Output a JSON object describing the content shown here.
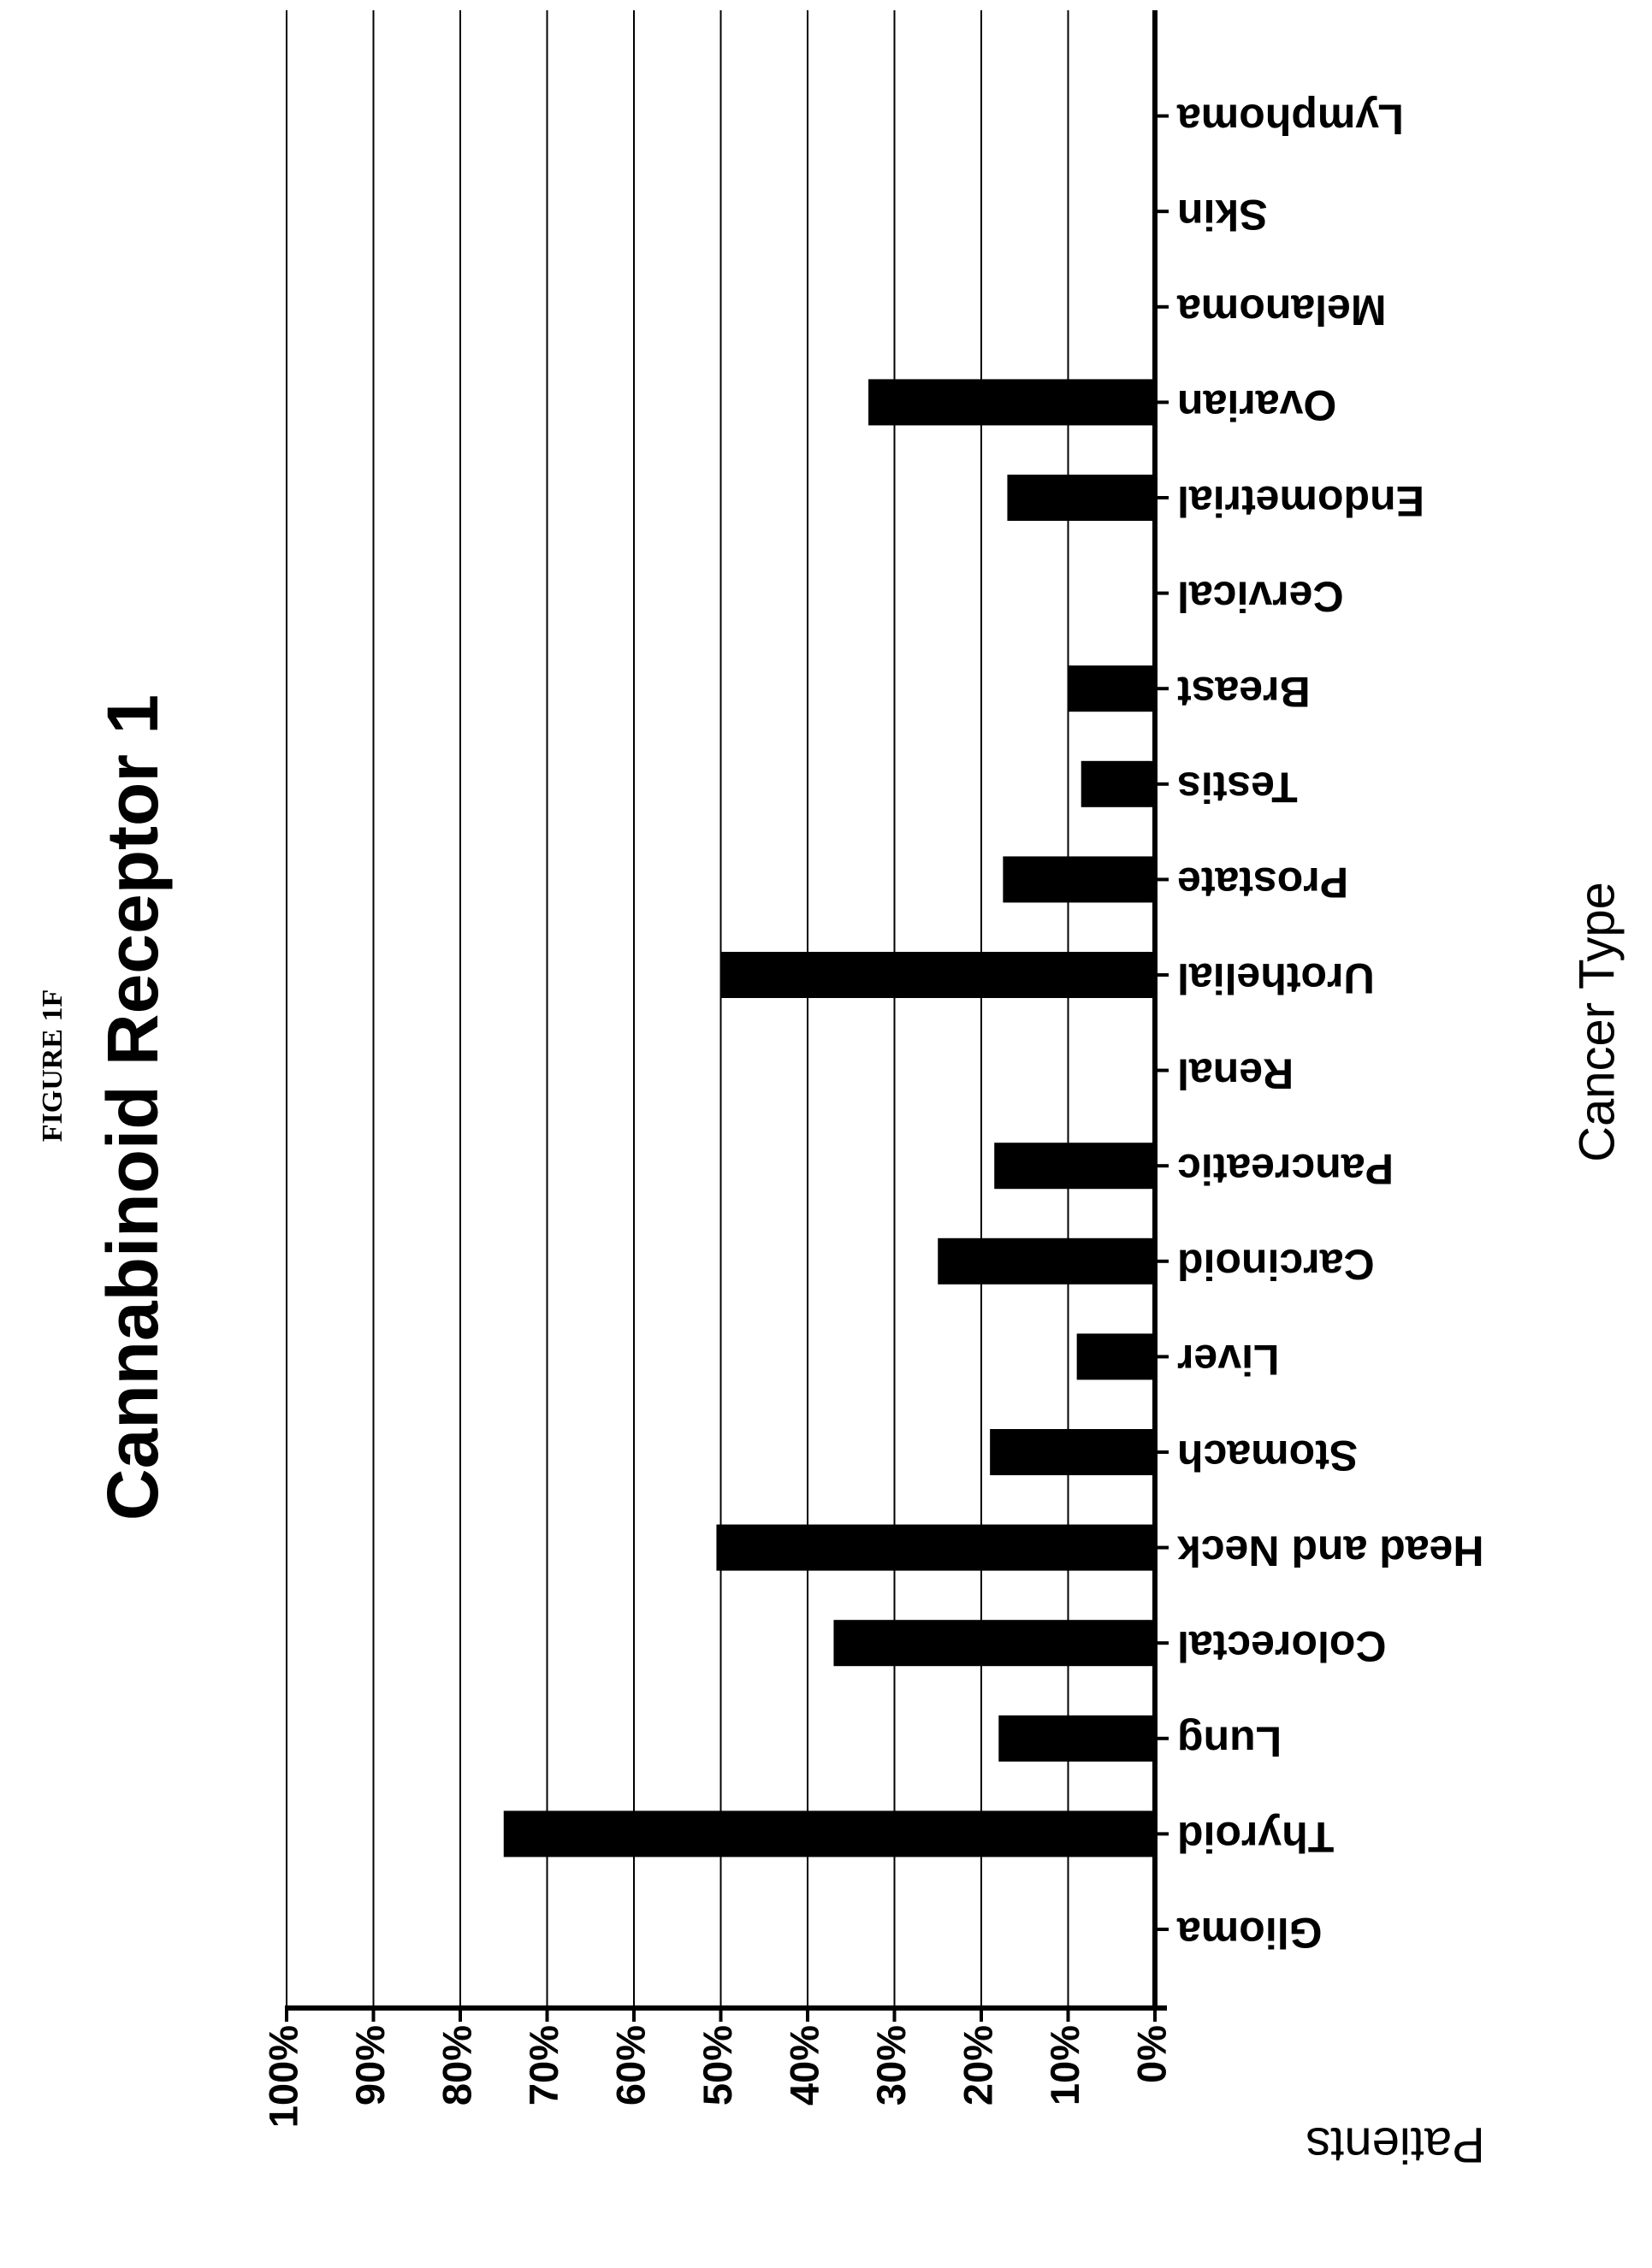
{
  "figure_label": "FIGURE 1F",
  "chart_data": {
    "type": "bar",
    "orientation": "rotated-180",
    "title": "Cannabinoid Receptor 1",
    "xlabel": "Cancer Type",
    "ylabel": "Patients",
    "ylim": [
      0,
      100
    ],
    "yticks": [
      "0%",
      "10%",
      "20%",
      "30%",
      "40%",
      "50%",
      "60%",
      "70%",
      "80%",
      "90%",
      "100%"
    ],
    "grid": true,
    "categories": [
      "Glioma",
      "Thyroid",
      "Lung",
      "Colorectal",
      "Head and Neck",
      "Stomach",
      "Liver",
      "Carcinoid",
      "Pancreatic",
      "Renal",
      "Urothelial",
      "Prostate",
      "Testis",
      "Breast",
      "Cervical",
      "Endometrial",
      "Ovarian",
      "Melanoma",
      "Skin",
      "Lymphoma"
    ],
    "values": [
      0,
      75,
      18,
      37,
      50.5,
      19,
      9,
      25,
      18.5,
      0,
      50,
      17.5,
      8.5,
      10,
      0,
      17,
      33,
      0,
      0,
      0
    ],
    "bar_color": "#000000"
  }
}
